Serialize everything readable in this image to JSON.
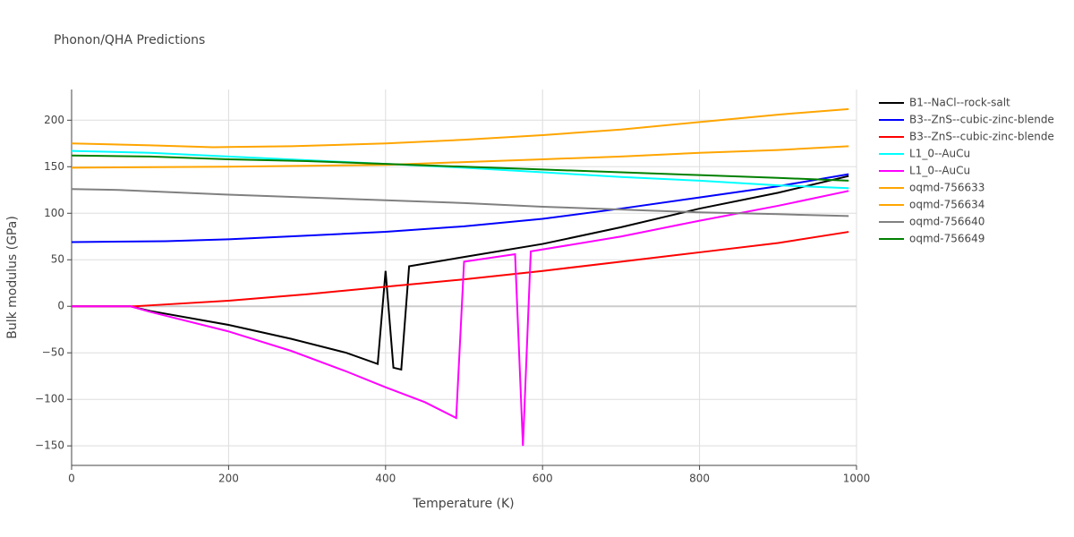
{
  "chart_data": {
    "type": "line",
    "title": "Phonon/QHA Predictions",
    "x_label": "Temperature (K)",
    "y_label": "Bulk modulus (GPa)",
    "xlim": [
      0,
      1000
    ],
    "xticks": [
      0,
      200,
      400,
      600,
      800,
      1000
    ],
    "ylim": [
      -171,
      233
    ],
    "yticks": [
      {
        "value": -150,
        "label": "−150"
      },
      {
        "value": -100,
        "label": "−100"
      },
      {
        "value": -50,
        "label": "−50"
      },
      0,
      50,
      100,
      150,
      200
    ],
    "grid": true,
    "legend": "right",
    "series": [
      {
        "name": "B1--NaCl--rock-salt",
        "color": "#000000",
        "x": [
          0,
          75,
          100,
          200,
          280,
          350,
          390,
          400,
          410,
          420,
          430,
          500,
          600,
          700,
          800,
          900,
          990
        ],
        "values": [
          0,
          0,
          -5,
          -20,
          -35,
          -50,
          -62,
          38,
          -66,
          -68,
          43,
          53,
          67,
          85,
          105,
          122,
          140
        ]
      },
      {
        "name": "B3--ZnS--cubic-zinc-blende",
        "color": "#0000ff",
        "x": [
          0,
          120,
          200,
          300,
          400,
          500,
          600,
          700,
          800,
          900,
          990
        ],
        "values": [
          69,
          70,
          72,
          76,
          80,
          86,
          94,
          105,
          117,
          129,
          142
        ]
      },
      {
        "name": "B3--ZnS--cubic-zinc-blende",
        "color": "#ff0000",
        "x": [
          0,
          80,
          100,
          200,
          300,
          400,
          500,
          600,
          700,
          800,
          900,
          990
        ],
        "values": [
          0,
          0,
          1,
          6,
          13,
          21,
          29,
          38,
          48,
          58,
          68,
          80
        ]
      },
      {
        "name": "L1_0--AuCu",
        "color": "#00ffff",
        "x": [
          0,
          100,
          200,
          300,
          400,
          500,
          600,
          700,
          800,
          900,
          990
        ],
        "values": [
          167,
          165,
          161,
          157,
          153,
          149,
          144,
          139,
          135,
          130,
          127
        ]
      },
      {
        "name": "L1_0--AuCu",
        "color": "#ff00ff",
        "x": [
          0,
          75,
          100,
          200,
          280,
          350,
          400,
          450,
          490,
          500,
          565,
          575,
          585,
          700,
          800,
          900,
          990
        ],
        "values": [
          0,
          0,
          -6,
          -27,
          -48,
          -70,
          -87,
          -103,
          -120,
          48,
          56,
          -150,
          59,
          75,
          92,
          108,
          124
        ]
      },
      {
        "name": "oqmd-756633",
        "color": "#ffa500",
        "x": [
          0,
          200,
          300,
          400,
          500,
          600,
          700,
          800,
          900,
          990
        ],
        "values": [
          149,
          150,
          151,
          152,
          155,
          158,
          161,
          165,
          168,
          172
        ]
      },
      {
        "name": "oqmd-756634",
        "color": "#ffa500",
        "x": [
          0,
          100,
          180,
          280,
          400,
          500,
          600,
          700,
          800,
          900,
          990
        ],
        "values": [
          175,
          173,
          171,
          172,
          175,
          179,
          184,
          190,
          198,
          206,
          212
        ]
      },
      {
        "name": "oqmd-756640",
        "color": "#808080",
        "x": [
          0,
          60,
          200,
          300,
          400,
          500,
          600,
          700,
          800,
          900,
          990
        ],
        "values": [
          126,
          125,
          120,
          117,
          114,
          111,
          107,
          104,
          101,
          99,
          97
        ]
      },
      {
        "name": "oqmd-756649",
        "color": "#008000",
        "x": [
          0,
          100,
          200,
          300,
          400,
          500,
          600,
          700,
          800,
          900,
          990
        ],
        "values": [
          162,
          161,
          158,
          156,
          153,
          150,
          147,
          144,
          141,
          138,
          135
        ]
      }
    ]
  }
}
